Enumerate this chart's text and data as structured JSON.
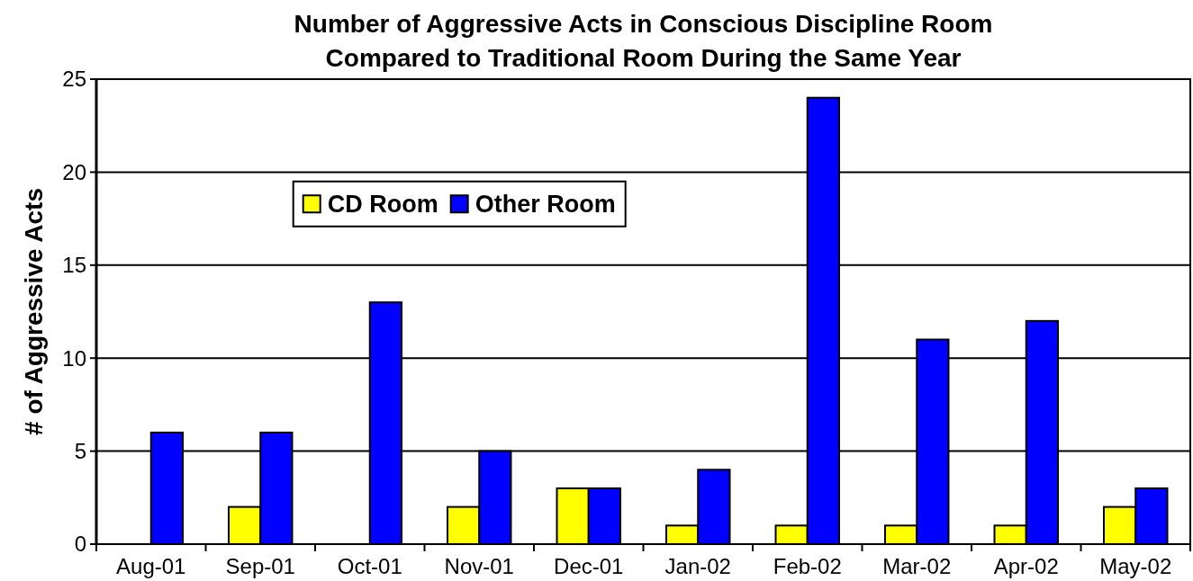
{
  "chart_data": {
    "type": "bar",
    "title": "Number of Aggressive Acts in Conscious Discipline Room\nCompared to Traditional Room During the Same Year",
    "ylabel": "# of Aggressive Acts",
    "categories": [
      "Aug-01",
      "Sep-01",
      "Oct-01",
      "Nov-01",
      "Dec-01",
      "Jan-02",
      "Feb-02",
      "Mar-02",
      "Apr-02",
      "May-02"
    ],
    "series": [
      {
        "name": "CD Room",
        "color": "#ffff00",
        "values": [
          0,
          2,
          0,
          2,
          3,
          1,
          1,
          1,
          1,
          2
        ]
      },
      {
        "name": "Other Room",
        "color": "#0000ff",
        "values": [
          6,
          6,
          13,
          5,
          3,
          4,
          24,
          11,
          12,
          3
        ]
      }
    ],
    "ylim": [
      0,
      25
    ],
    "yticks": [
      0,
      5,
      10,
      15,
      20,
      25
    ],
    "grid": "y",
    "legend": "top left"
  }
}
